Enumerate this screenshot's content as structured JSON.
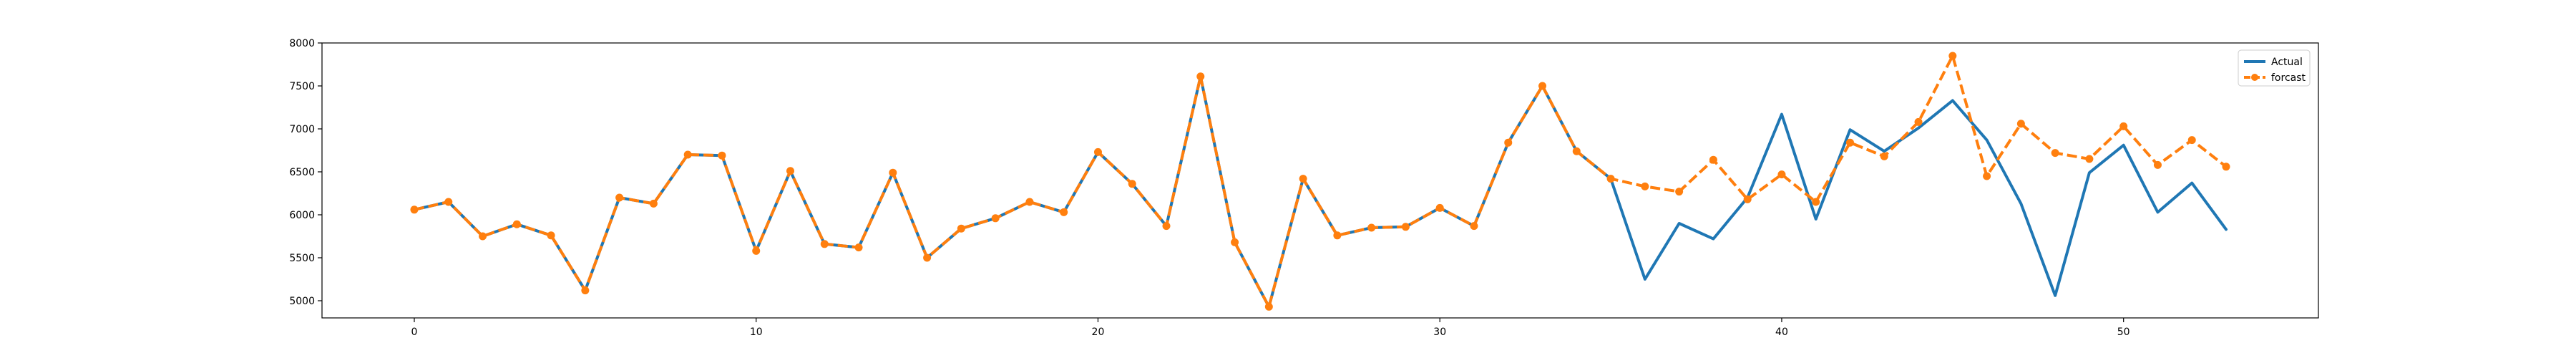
{
  "chart_data": {
    "type": "line",
    "title": "",
    "xlabel": "",
    "ylabel": "",
    "xlim": [
      -2.7,
      55.7
    ],
    "ylim": [
      4800,
      8000
    ],
    "xticks": [
      0,
      10,
      20,
      30,
      40,
      50
    ],
    "yticks": [
      5000,
      5500,
      6000,
      6500,
      7000,
      7500,
      8000
    ],
    "grid": false,
    "legend_position": "top-right",
    "series": [
      {
        "name": "Actual",
        "color": "#1f77b4",
        "style": "solid",
        "markers": false,
        "x": [
          0,
          1,
          2,
          3,
          4,
          5,
          6,
          7,
          8,
          9,
          10,
          11,
          12,
          13,
          14,
          15,
          16,
          17,
          18,
          19,
          20,
          21,
          22,
          23,
          24,
          25,
          26,
          27,
          28,
          29,
          30,
          31,
          32,
          33,
          34,
          35,
          36,
          37,
          38,
          39,
          40,
          41,
          42,
          43,
          44,
          45,
          46,
          47,
          48,
          49,
          50,
          51,
          52,
          53
        ],
        "y": [
          6060,
          6150,
          5750,
          5890,
          5760,
          5120,
          6200,
          6130,
          6700,
          6690,
          5580,
          6510,
          5660,
          5620,
          6490,
          5500,
          5840,
          5960,
          6150,
          6030,
          6730,
          6360,
          5870,
          7610,
          5680,
          4930,
          6420,
          5760,
          5850,
          5860,
          6080,
          5870,
          6840,
          7500,
          6740,
          6420,
          5250,
          5900,
          5720,
          6200,
          7170,
          5950,
          6990,
          6740,
          7010,
          7330,
          6870,
          6130,
          5060,
          6490,
          6810,
          6030,
          6370,
          5830
        ]
      },
      {
        "name": "forcast",
        "color": "#ff7f0e",
        "style": "dashed",
        "markers": true,
        "x": [
          0,
          1,
          2,
          3,
          4,
          5,
          6,
          7,
          8,
          9,
          10,
          11,
          12,
          13,
          14,
          15,
          16,
          17,
          18,
          19,
          20,
          21,
          22,
          23,
          24,
          25,
          26,
          27,
          28,
          29,
          30,
          31,
          32,
          33,
          34,
          35,
          36,
          37,
          38,
          39,
          40,
          41,
          42,
          43,
          44,
          45,
          46,
          47,
          48,
          49,
          50,
          51,
          52,
          53
        ],
        "y": [
          6060,
          6150,
          5750,
          5890,
          5760,
          5120,
          6200,
          6130,
          6700,
          6690,
          5580,
          6510,
          5660,
          5620,
          6490,
          5500,
          5840,
          5960,
          6150,
          6030,
          6730,
          6360,
          5870,
          7610,
          5680,
          4930,
          6420,
          5760,
          5850,
          5860,
          6080,
          5870,
          6840,
          7500,
          6740,
          6420,
          6330,
          6270,
          6640,
          6180,
          6470,
          6150,
          6840,
          6680,
          7080,
          7850,
          6450,
          7060,
          6720,
          6650,
          7030,
          6580,
          6870,
          6560
        ]
      }
    ]
  }
}
